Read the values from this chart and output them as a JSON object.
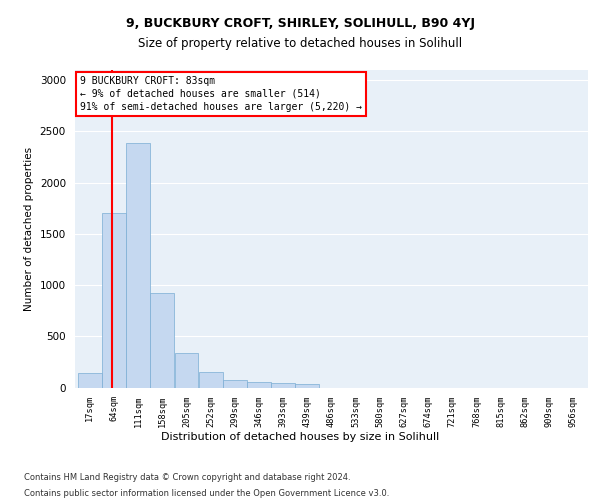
{
  "title1": "9, BUCKBURY CROFT, SHIRLEY, SOLIHULL, B90 4YJ",
  "title2": "Size of property relative to detached houses in Solihull",
  "xlabel": "Distribution of detached houses by size in Solihull",
  "ylabel": "Number of detached properties",
  "footer1": "Contains HM Land Registry data © Crown copyright and database right 2024.",
  "footer2": "Contains public sector information licensed under the Open Government Licence v3.0.",
  "annotation_line1": "9 BUCKBURY CROFT: 83sqm",
  "annotation_line2": "← 9% of detached houses are smaller (514)",
  "annotation_line3": "91% of semi-detached houses are larger (5,220) →",
  "bar_color": "#c5d8f0",
  "bar_edge_color": "#7aadd4",
  "bg_color": "#e8f0f8",
  "red_line_x": 83,
  "categories": [
    "17sqm",
    "64sqm",
    "111sqm",
    "158sqm",
    "205sqm",
    "252sqm",
    "299sqm",
    "346sqm",
    "393sqm",
    "439sqm",
    "486sqm",
    "533sqm",
    "580sqm",
    "627sqm",
    "674sqm",
    "721sqm",
    "768sqm",
    "815sqm",
    "862sqm",
    "909sqm",
    "956sqm"
  ],
  "bin_edges": [
    17,
    64,
    111,
    158,
    205,
    252,
    299,
    346,
    393,
    439,
    486,
    533,
    580,
    627,
    674,
    721,
    768,
    815,
    862,
    909,
    956,
    1003
  ],
  "values": [
    140,
    1700,
    2390,
    920,
    340,
    155,
    75,
    55,
    40,
    30,
    0,
    0,
    0,
    0,
    0,
    0,
    0,
    0,
    0,
    0,
    0
  ],
  "ylim": [
    0,
    3100
  ],
  "yticks": [
    0,
    500,
    1000,
    1500,
    2000,
    2500,
    3000
  ]
}
